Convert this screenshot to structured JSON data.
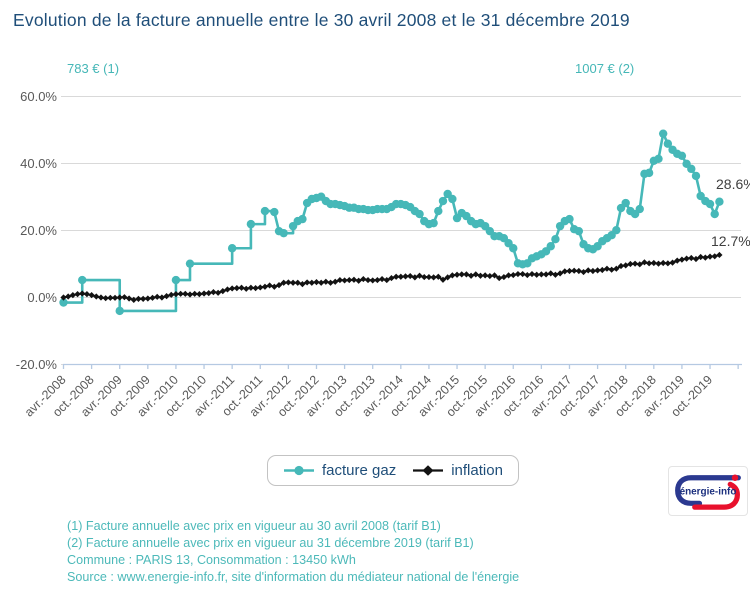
{
  "title": "Evolution de la facture annuelle entre le 30 avril 2008 et le 31 décembre 2019",
  "annotations": {
    "left": "783 € (1)",
    "right": "1007 € (2)"
  },
  "end_labels": {
    "facture_gaz": "28.6%",
    "inflation": "12.7%"
  },
  "legend": {
    "items": [
      {
        "label": "facture gaz",
        "color": "#46B8B8",
        "marker": "circle"
      },
      {
        "label": "inflation",
        "color": "#131313",
        "marker": "diamond"
      }
    ]
  },
  "logo": {
    "text": "énergie-info",
    "blue": "#2B3990",
    "red": "#E8112D"
  },
  "footer": {
    "lines": [
      "(1) Facture annuelle avec prix en vigueur au 30 avril 2008 (tarif B1)",
      "(2) Facture annuelle avec prix en vigueur au 31 décembre 2019 (tarif B1)",
      "Commune : PARIS 13, Consommation : 13450 kWh",
      "Source : www.energie-info.fr, site d'information du médiateur national de l'énergie"
    ]
  },
  "chart_data": {
    "type": "line",
    "title": "Evolution de la facture annuelle entre le 30 avril 2008 et le 31 décembre 2019",
    "xlabel": "",
    "ylabel": "",
    "ylim": [
      -20,
      60
    ],
    "grid": "horizontal",
    "legend_position": "bottom",
    "x_unit": "mois (avr. 2008 = 0, déc. 2019 = 140)",
    "x_tick_labels": [
      "avr.-2008",
      "oct.-2008",
      "avr.-2009",
      "oct.-2009",
      "avr.-2010",
      "oct.-2010",
      "avr.-2011",
      "oct.-2011",
      "avr.-2012",
      "oct.-2012",
      "avr.-2013",
      "oct.-2013",
      "avr.-2014",
      "oct.-2014",
      "avr.-2015",
      "oct.-2015",
      "avr.-2016",
      "oct.-2016",
      "avr.-2017",
      "oct.-2017",
      "avr.-2018",
      "oct.-2018",
      "avr.-2019",
      "oct.-2019"
    ],
    "y_ticks": [
      "60.0%",
      "40.0%",
      "20.0%",
      "0.0%",
      "-20.0%"
    ],
    "y_tick_values": [
      60,
      40,
      20,
      0,
      -20
    ],
    "series": [
      {
        "name": "facture gaz",
        "color": "#46B8B8",
        "marker": "circle",
        "line_style": "step-after-when-gap",
        "months": [
          0,
          4,
          12,
          24,
          27,
          36,
          40,
          43,
          45,
          46,
          47,
          49,
          50,
          51,
          52,
          53,
          54,
          55,
          56,
          57,
          58,
          59,
          60,
          61,
          62,
          63,
          64,
          65,
          66,
          67,
          68,
          69,
          70,
          71,
          72,
          73,
          74,
          75,
          76,
          77,
          78,
          79,
          80,
          81,
          82,
          83,
          84,
          85,
          86,
          87,
          88,
          89,
          90,
          91,
          92,
          93,
          94,
          95,
          96,
          97,
          98,
          99,
          100,
          101,
          102,
          103,
          104,
          105,
          106,
          107,
          108,
          109,
          110,
          111,
          112,
          113,
          114,
          115,
          116,
          117,
          118,
          119,
          120,
          121,
          122,
          123,
          124,
          125,
          126,
          127,
          128,
          129,
          130,
          131,
          132,
          133,
          134,
          135,
          136,
          137,
          138,
          139,
          140
        ],
        "values_pct": [
          -1.5,
          5.2,
          -4.0,
          5.2,
          10.1,
          14.7,
          21.9,
          25.8,
          25.5,
          19.8,
          19.2,
          21.3,
          22.8,
          23.4,
          28.2,
          29.4,
          29.7,
          30.1,
          28.8,
          27.9,
          27.9,
          27.6,
          27.3,
          26.8,
          26.8,
          26.4,
          26.4,
          26.1,
          26.1,
          26.4,
          26.4,
          26.4,
          27.0,
          27.9,
          27.9,
          27.6,
          27.0,
          25.8,
          24.9,
          22.8,
          21.9,
          22.2,
          25.8,
          28.8,
          30.9,
          29.4,
          23.7,
          25.2,
          24.3,
          22.8,
          21.9,
          22.2,
          21.3,
          19.8,
          18.3,
          18.3,
          17.7,
          16.2,
          14.7,
          10.2,
          9.9,
          10.2,
          11.7,
          12.3,
          12.9,
          13.8,
          15.3,
          17.4,
          21.3,
          22.8,
          23.4,
          20.4,
          19.8,
          15.9,
          14.7,
          14.4,
          15.3,
          16.8,
          17.7,
          18.6,
          20.1,
          26.7,
          28.2,
          25.8,
          24.9,
          26.4,
          36.9,
          37.2,
          40.8,
          41.4,
          48.9,
          45.9,
          44.1,
          42.9,
          42.3,
          39.9,
          38.4,
          36.3,
          30.3,
          28.8,
          27.9,
          24.9,
          28.6
        ],
        "end_value_label": "28.6%"
      },
      {
        "name": "inflation",
        "color": "#131313",
        "marker": "diamond",
        "line_style": "linear",
        "frequency": "monthly from avr. 2008",
        "values_pct": [
          0.0,
          0.3,
          0.7,
          1.0,
          1.2,
          1.0,
          0.7,
          0.3,
          0.0,
          -0.2,
          -0.1,
          -0.1,
          0.0,
          0.1,
          -0.3,
          -0.7,
          -0.4,
          -0.4,
          -0.3,
          -0.1,
          0.2,
          0.0,
          0.4,
          0.8,
          1.0,
          1.1,
          1.1,
          0.9,
          1.1,
          1.0,
          1.2,
          1.3,
          1.6,
          1.4,
          1.9,
          2.4,
          2.7,
          2.8,
          2.9,
          2.6,
          2.9,
          2.8,
          3.0,
          3.2,
          3.6,
          3.2,
          3.7,
          4.4,
          4.5,
          4.4,
          4.4,
          4.0,
          4.5,
          4.4,
          4.6,
          4.4,
          4.7,
          4.4,
          4.7,
          5.2,
          5.1,
          5.2,
          5.3,
          5.0,
          5.5,
          5.2,
          5.1,
          5.2,
          5.5,
          5.2,
          5.8,
          6.2,
          6.2,
          6.3,
          6.4,
          6.0,
          6.5,
          6.1,
          6.1,
          6.0,
          6.2,
          5.3,
          6.0,
          6.6,
          6.8,
          6.9,
          6.9,
          6.5,
          6.9,
          6.5,
          6.6,
          6.4,
          6.6,
          5.8,
          6.1,
          6.6,
          6.7,
          7.0,
          7.0,
          6.7,
          7.0,
          6.8,
          6.9,
          6.9,
          7.2,
          6.8,
          7.2,
          7.8,
          7.9,
          8.0,
          7.9,
          7.6,
          8.1,
          7.9,
          8.1,
          8.2,
          8.6,
          8.3,
          8.6,
          9.4,
          9.6,
          10.0,
          10.1,
          9.9,
          10.5,
          10.2,
          10.3,
          10.1,
          10.3,
          10.2,
          10.4,
          11.0,
          11.3,
          11.6,
          11.8,
          11.5,
          12.1,
          11.9,
          12.2,
          12.3,
          12.7
        ],
        "end_value_label": "12.7%"
      }
    ]
  }
}
